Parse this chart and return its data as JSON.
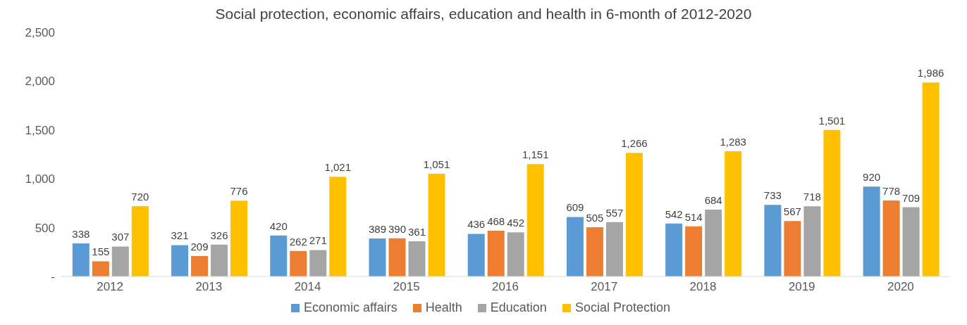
{
  "chart_data": {
    "type": "bar",
    "title": "Social protection, economic affairs, education and health in 6-month of 2012-2020",
    "categories": [
      "2012",
      "2013",
      "2014",
      "2015",
      "2016",
      "2017",
      "2018",
      "2019",
      "2020"
    ],
    "series": [
      {
        "name": "Economic affairs",
        "color": "#5b9bd5",
        "values": [
          338,
          321,
          420,
          389,
          436,
          609,
          542,
          733,
          920
        ],
        "value_labels": [
          "338",
          "321",
          "420",
          "389",
          "436",
          "609",
          "542",
          "733",
          "920"
        ]
      },
      {
        "name": "Health",
        "color": "#ed7d31",
        "values": [
          155,
          209,
          262,
          390,
          468,
          505,
          514,
          567,
          778
        ],
        "value_labels": [
          "155",
          "209",
          "262",
          "390",
          "468",
          "505",
          "514",
          "567",
          "778"
        ]
      },
      {
        "name": "Education",
        "color": "#a5a5a5",
        "values": [
          307,
          326,
          271,
          361,
          452,
          557,
          684,
          718,
          709
        ],
        "value_labels": [
          "307",
          "326",
          "271",
          "361",
          "452",
          "557",
          "684",
          "718",
          "709"
        ]
      },
      {
        "name": "Social Protection",
        "color": "#ffc000",
        "values": [
          720,
          776,
          1021,
          1051,
          1151,
          1266,
          1283,
          1501,
          1986
        ],
        "value_labels": [
          "720",
          "776",
          "1,021",
          "1,051",
          "1,151",
          "1,266",
          "1,283",
          "1,501",
          "1,986"
        ]
      }
    ],
    "ylim": [
      0,
      2500
    ],
    "yticks": [
      {
        "value": 0,
        "label": "-"
      },
      {
        "value": 500,
        "label": "500"
      },
      {
        "value": 1000,
        "label": "1,000"
      },
      {
        "value": 1500,
        "label": "1,500"
      },
      {
        "value": 2000,
        "label": "2,000"
      },
      {
        "value": 2500,
        "label": "2,500"
      }
    ],
    "grid": false,
    "legend": "bottom"
  }
}
